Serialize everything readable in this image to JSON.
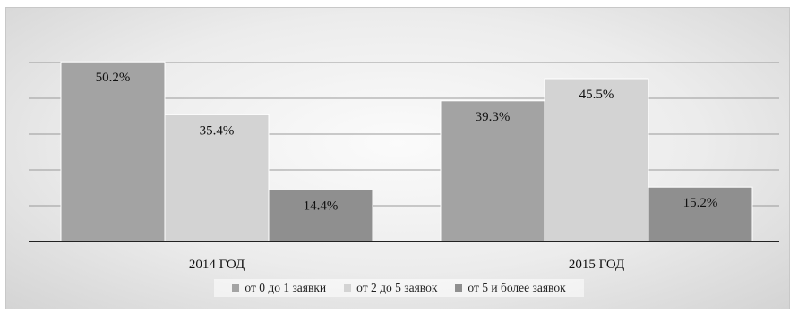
{
  "chart_data": {
    "type": "bar",
    "title": "",
    "xlabel": "",
    "ylabel": "",
    "categories": [
      "2014 ГОД",
      "2015 ГОД"
    ],
    "series": [
      {
        "name": "от 0 до 1 заявки",
        "values": [
          50.2,
          39.3
        ],
        "labels": [
          "50.2%",
          "39.3%"
        ],
        "color": "#a3a3a3"
      },
      {
        "name": "от 2 до 5 заявок",
        "values": [
          35.4,
          45.5
        ],
        "labels": [
          "35.4%",
          "45.5%"
        ],
        "color": "#d3d3d3"
      },
      {
        "name": "от 5 и более заявок",
        "values": [
          14.4,
          15.2
        ],
        "labels": [
          "14.4%",
          "15.2%"
        ],
        "color": "#8f8f8f"
      }
    ],
    "ylim": [
      0,
      50
    ],
    "grid": true,
    "legend_position": "bottom"
  }
}
